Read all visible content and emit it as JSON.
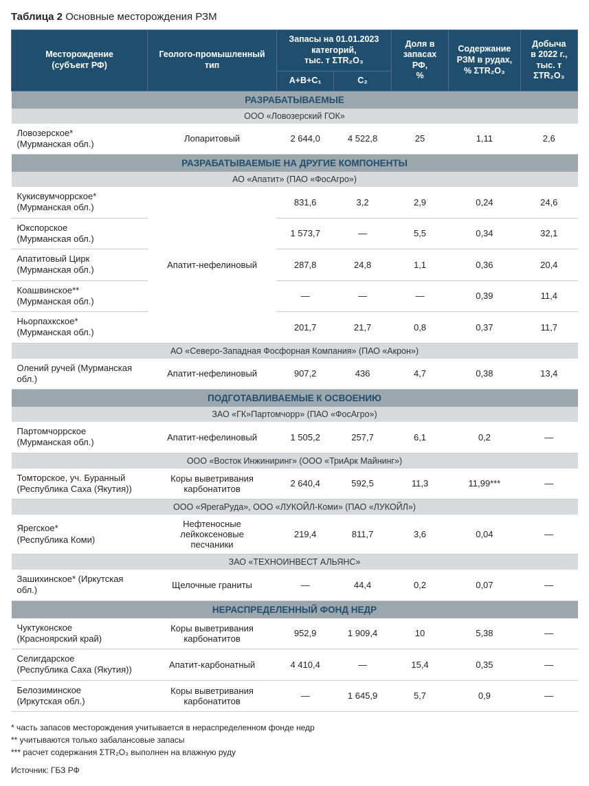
{
  "title_label": "Таблица 2",
  "title_text": "Основные месторождения РЗМ",
  "colors": {
    "header_bg": "#1f4e6e",
    "header_fg": "#ffffff",
    "section_bg": "#9ca6ad",
    "section_fg": "#1f4e6e",
    "subhead_bg": "#d6dadd",
    "row_border": "#c8ccd0"
  },
  "header": {
    "deposit": "Месторождение\n(субъект РФ)",
    "type": "Геолого-промышленный\nтип",
    "reserves_group": "Запасы на 01.01.2023\nкатегорий,\nтыс. т ΣTR₂O₃",
    "abc1": "A+B+C₁",
    "c2": "C₂",
    "share": "Доля в\nзапасах РФ,\n%",
    "content": "Содержание\nРЗМ в рудах,\n% ΣTR₂O₃",
    "mining": "Добыча\nв 2022 г.,\nтыс. т\nΣTR₂O₃"
  },
  "sections": [
    {
      "title": "РАЗРАБАТЫВАЕМЫЕ",
      "groups": [
        {
          "company": "ООО «Ловозерский ГОК»",
          "rows": [
            {
              "name": "Ловозерское*\n(Мурманская обл.)",
              "type": "Лопаритовый",
              "abc1": "2 644,0",
              "c2": "4 522,8",
              "share": "25",
              "content": "1,11",
              "mining": "2,6"
            }
          ]
        }
      ]
    },
    {
      "title": "РАЗРАБАТЫВАЕМЫЕ НА ДРУГИЕ КОМПОНЕНТЫ",
      "groups": [
        {
          "company": "АО «Апатит» (ПАО «ФосАгро»)",
          "type_span": "Апатит-нефелиновый",
          "rows": [
            {
              "name": "Кукисвумчоррское*\n(Мурманская обл.)",
              "abc1": "831,6",
              "c2": "3,2",
              "share": "2,9",
              "content": "0,24",
              "mining": "24,6"
            },
            {
              "name": "Юкспорское\n(Мурманская обл.)",
              "abc1": "1 573,7",
              "c2": "—",
              "share": "5,5",
              "content": "0,34",
              "mining": "32,1"
            },
            {
              "name": "Апатитовый Цирк\n(Мурманская обл.)",
              "abc1": "287,8",
              "c2": "24,8",
              "share": "1,1",
              "content": "0,36",
              "mining": "20,4"
            },
            {
              "name": "Коашвинское**\n(Мурманская обл.)",
              "abc1": "—",
              "c2": "—",
              "share": "—",
              "content": "0,39",
              "mining": "11,4"
            },
            {
              "name": "Ньорпахкское*\n(Мурманская обл.)",
              "abc1": "201,7",
              "c2": "21,7",
              "share": "0,8",
              "content": "0,37",
              "mining": "11,7"
            }
          ]
        },
        {
          "company": "АО «Северо-Западная Фосфорная Компания» (ПАО «Акрон»)",
          "rows": [
            {
              "name": "Олений ручей (Мурманская обл.)",
              "type": "Апатит-нефелиновый",
              "abc1": "907,2",
              "c2": "436",
              "share": "4,7",
              "content": "0,38",
              "mining": "13,4"
            }
          ]
        }
      ]
    },
    {
      "title": "ПОДГОТАВЛИВАЕМЫЕ К ОСВОЕНИЮ",
      "groups": [
        {
          "company": "ЗАО «ГК»Партомчорр» (ПАО «ФосАгро»)",
          "rows": [
            {
              "name": "Партомчоррское\n(Мурманская обл.)",
              "type": "Апатит-нефелиновый",
              "abc1": "1 505,2",
              "c2": "257,7",
              "share": "6,1",
              "content": "0,2",
              "mining": "—"
            }
          ]
        },
        {
          "company": "ООО «Восток Инжиниринг» (ООО «ТриАрк Майнинг»)",
          "rows": [
            {
              "name": "Томторское, уч. Буранный\n(Республика Саха (Якутия))",
              "type": "Коры выветривания\nкарбонатитов",
              "abc1": "2 640,4",
              "c2": "592,5",
              "share": "11,3",
              "content": "11,99***",
              "mining": "—"
            }
          ]
        },
        {
          "company": "ООО «ЯрегаРуда», ООО «ЛУКОЙЛ-Коми» (ПАО «ЛУКОЙЛ»)",
          "rows": [
            {
              "name": "Ярегское*\n(Республика Коми)",
              "type": "Нефтеносные лейкоксеновые\nпесчаники",
              "abc1": "219,4",
              "c2": "811,7",
              "share": "3,6",
              "content": "0,04",
              "mining": "—"
            }
          ]
        },
        {
          "company": "ЗАО «ТЕХНОИНВЕСТ АЛЬЯНС»",
          "rows": [
            {
              "name": "Зашихинское* (Иркутская обл.)",
              "type": "Щелочные граниты",
              "abc1": "—",
              "c2": "44,4",
              "share": "0,2",
              "content": "0,07",
              "mining": "—"
            }
          ]
        }
      ]
    },
    {
      "title": "НЕРАСПРЕДЕЛЕННЫЙ ФОНД НЕДР",
      "groups": [
        {
          "company": null,
          "rows": [
            {
              "name": "Чуктуконское\n(Красноярский край)",
              "type": "Коры выветривания\nкарбонатитов",
              "abc1": "952,9",
              "c2": "1 909,4",
              "share": "10",
              "content": "5,38",
              "mining": "—"
            },
            {
              "name": "Селигдарское\n(Республика Саха (Якутия))",
              "type": "Апатит-карбонатный",
              "abc1": "4 410,4",
              "c2": "—",
              "share": "15,4",
              "content": "0,35",
              "mining": "—"
            },
            {
              "name": "Белозиминское\n(Иркутская обл.)",
              "type": "Коры выветривания\nкарбонатитов",
              "abc1": "—",
              "c2": "1 645,9",
              "share": "5,7",
              "content": "0,9",
              "mining": "—"
            }
          ]
        }
      ]
    }
  ],
  "footnotes": [
    "*   часть запасов месторождения учитывается в нераспределенном фонде недр",
    "**  учитываются только забалансовые запасы",
    "*** расчет содержания ΣTR₂O₃ выполнен на влажную руду"
  ],
  "source": "Источник: ГБЗ РФ"
}
